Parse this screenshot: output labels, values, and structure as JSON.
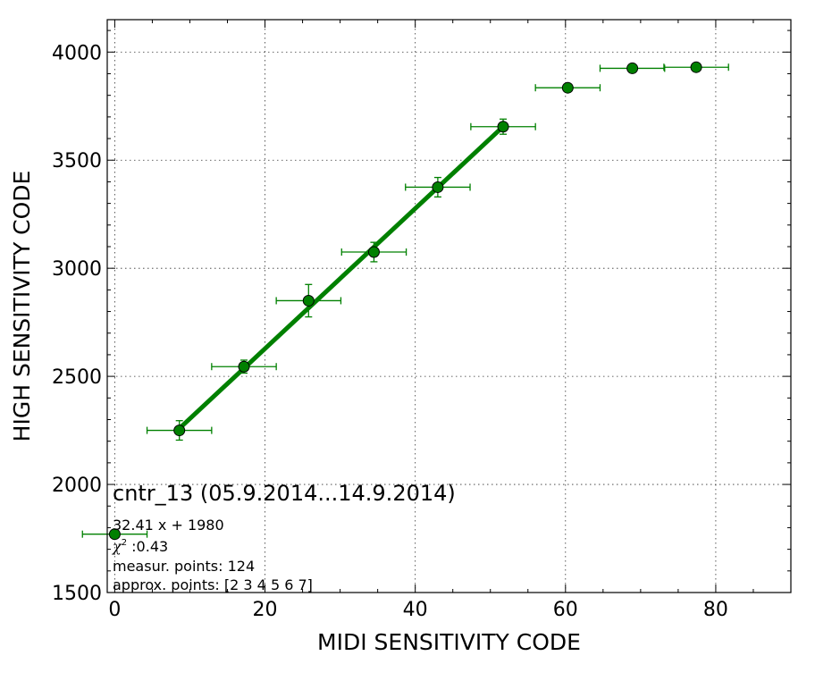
{
  "chart_data": {
    "type": "scatter",
    "xlabel": "MIDI SENSITIVITY CODE",
    "ylabel": "HIGH SENSITIVITY CODE",
    "xlim": [
      -1,
      90
    ],
    "ylim": [
      1500,
      4150
    ],
    "xticks": [
      0,
      20,
      40,
      60,
      80
    ],
    "yticks": [
      1500,
      2000,
      2500,
      3000,
      3500,
      4000
    ],
    "xtick_labels": [
      "0",
      "20",
      "40",
      "60",
      "80"
    ],
    "ytick_labels": [
      "1500",
      "2000",
      "2500",
      "3000",
      "3500",
      "4000"
    ],
    "grid": true,
    "series": [
      {
        "kind": "points",
        "color": "#008000",
        "points": [
          {
            "x": 0.0,
            "y": 1770,
            "xerr": 4.3,
            "yerr": 0
          },
          {
            "x": 8.6,
            "y": 2250,
            "xerr": 4.3,
            "yerr": 45
          },
          {
            "x": 17.2,
            "y": 2545,
            "xerr": 4.3,
            "yerr": 30
          },
          {
            "x": 25.8,
            "y": 2850,
            "xerr": 4.3,
            "yerr": 75
          },
          {
            "x": 34.5,
            "y": 3075,
            "xerr": 4.3,
            "yerr": 45
          },
          {
            "x": 43.0,
            "y": 3375,
            "xerr": 4.3,
            "yerr": 45
          },
          {
            "x": 51.7,
            "y": 3655,
            "xerr": 4.3,
            "yerr": 35
          },
          {
            "x": 60.3,
            "y": 3835,
            "xerr": 4.3,
            "yerr": 0
          },
          {
            "x": 68.9,
            "y": 3925,
            "xerr": 4.3,
            "yerr": 0
          },
          {
            "x": 77.4,
            "y": 3930,
            "xerr": 4.3,
            "yerr": 0
          }
        ]
      },
      {
        "kind": "fit-line",
        "color": "#008000",
        "slope": 32.41,
        "intercept": 1980,
        "x_range": [
          8.6,
          51.7
        ]
      }
    ],
    "annotations": {
      "title": "cntr_13 (05.9.2014...14.9.2014)",
      "fit": "32.41 x + 1980",
      "chi2_symbol": "χ",
      "chi2_exp": "2",
      "chi2_value": " :0.43",
      "measur_points": "measur. points: 124",
      "approx_points": "approx. points: [2 3 4 5 6 7]"
    }
  }
}
